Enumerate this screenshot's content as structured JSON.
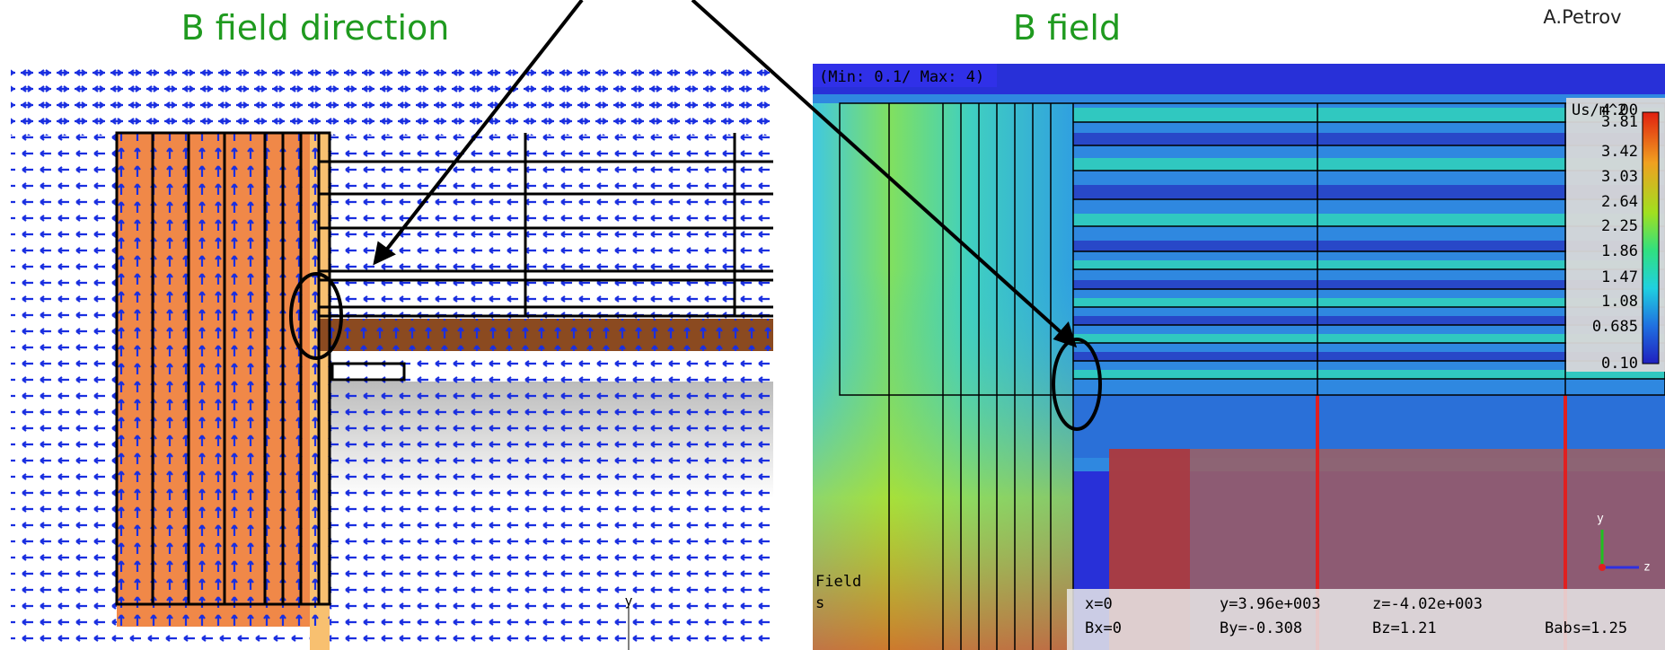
{
  "header": {
    "left_title": "B field direction",
    "right_title": "B field",
    "author": "A.Petrov"
  },
  "left_panel": {
    "axis_label": "y"
  },
  "right_panel": {
    "range_label": "(Min: 0.1/ Max: 4)",
    "unit": "Us/m^2",
    "scale": [
      "4.00",
      "3.81",
      "3.42",
      "3.03",
      "2.64",
      "2.25",
      "1.86",
      "1.47",
      "1.08",
      "0.685",
      "0.10"
    ],
    "field_label": "Field",
    "s_label": "s",
    "readout": [
      [
        "x=0",
        "y=3.96e+003",
        "z=-4.02e+003"
      ],
      [
        "Bx=0",
        "By=-0.308",
        "Bz=1.21",
        "Babs=1.25"
      ]
    ],
    "triad": [
      "y",
      "z"
    ]
  }
}
